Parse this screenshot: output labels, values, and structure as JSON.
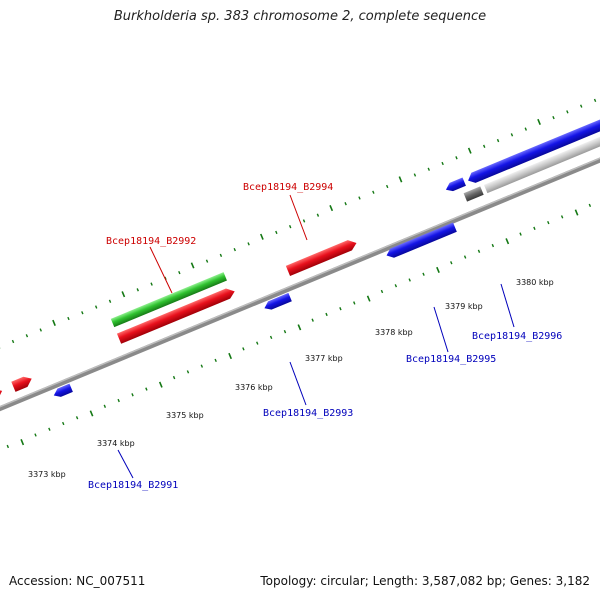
{
  "title": "Burkholderia sp. 383 chromosome 2, complete sequence",
  "footer": {
    "accession": "Accession: NC_007511",
    "summary": "Topology: circular; Length: 3,587,082 bp; Genes: 3,182"
  },
  "colors": {
    "forward_gene": "#e8101c",
    "reverse_gene": "#1414e6",
    "rna": "#2fc22f",
    "other": "#777777",
    "tick": "#147814",
    "backbone": "#8a8a8a",
    "label_forward": "#cc0000",
    "label_reverse": "#0000bb"
  },
  "scale_labels": [
    "3373 kbp",
    "3374 kbp",
    "3375 kbp",
    "3376 kbp",
    "3377 kbp",
    "3378 kbp",
    "3379 kbp",
    "3380 kbp"
  ],
  "gene_labels": [
    {
      "text": "Bcep18194_B2994",
      "strand": "forward"
    },
    {
      "text": "Bcep18194_B2992",
      "strand": "forward"
    },
    {
      "text": "Bcep18194_B2995",
      "strand": "reverse"
    },
    {
      "text": "Bcep18194_B2996",
      "strand": "reverse"
    },
    {
      "text": "Bcep18194_B2993",
      "strand": "reverse"
    },
    {
      "text": "Bcep18194_B2991",
      "strand": "reverse"
    }
  ]
}
